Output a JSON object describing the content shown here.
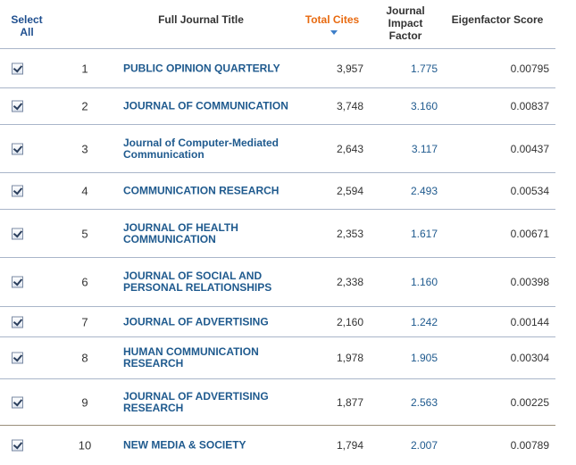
{
  "header": {
    "select_all": "Select All",
    "full_title": "Full Journal Title",
    "total_cites": "Total Cites",
    "impact_factor": "Journal Impact Factor",
    "eigenfactor": "Eigenfactor Score"
  },
  "rows": [
    {
      "rank": "1",
      "title": "PUBLIC OPINION QUARTERLY",
      "cites": "3,957",
      "impact": "1.775",
      "eigen": "0.00795",
      "checked": true
    },
    {
      "rank": "2",
      "title": "JOURNAL OF COMMUNICATION",
      "cites": "3,748",
      "impact": "3.160",
      "eigen": "0.00837",
      "checked": true
    },
    {
      "rank": "3",
      "title": "Journal of Computer-Mediated Communication",
      "cites": "2,643",
      "impact": "3.117",
      "eigen": "0.00437",
      "checked": true
    },
    {
      "rank": "4",
      "title": "COMMUNICATION RESEARCH",
      "cites": "2,594",
      "impact": "2.493",
      "eigen": "0.00534",
      "checked": true
    },
    {
      "rank": "5",
      "title": "JOURNAL OF HEALTH COMMUNICATION",
      "cites": "2,353",
      "impact": "1.617",
      "eigen": "0.00671",
      "checked": true
    },
    {
      "rank": "6",
      "title": "JOURNAL OF SOCIAL AND PERSONAL RELATIONSHIPS",
      "cites": "2,338",
      "impact": "1.160",
      "eigen": "0.00398",
      "checked": true
    },
    {
      "rank": "7",
      "title": "JOURNAL OF ADVERTISING",
      "cites": "2,160",
      "impact": "1.242",
      "eigen": "0.00144",
      "checked": true
    },
    {
      "rank": "8",
      "title": "HUMAN COMMUNICATION RESEARCH",
      "cites": "1,978",
      "impact": "1.905",
      "eigen": "0.00304",
      "checked": true
    },
    {
      "rank": "9",
      "title": "JOURNAL OF ADVERTISING RESEARCH",
      "cites": "1,877",
      "impact": "2.563",
      "eigen": "0.00225",
      "checked": true
    },
    {
      "rank": "10",
      "title": "NEW MEDIA & SOCIETY",
      "cites": "1,794",
      "impact": "2.007",
      "eigen": "0.00789",
      "checked": true
    }
  ]
}
